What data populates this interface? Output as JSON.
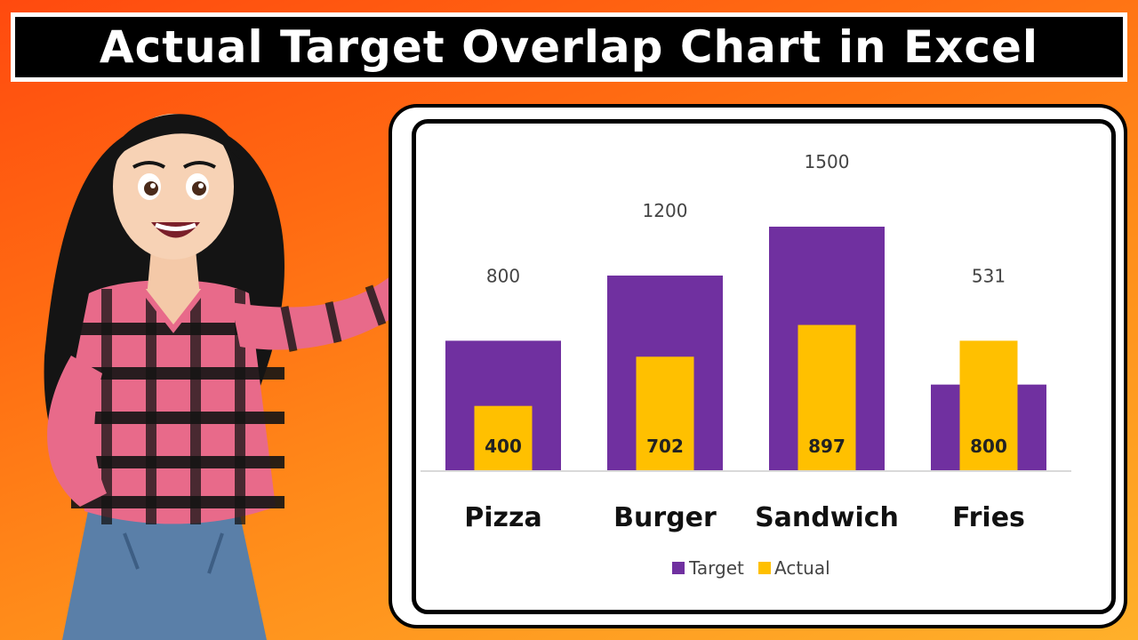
{
  "title": "Actual Target Overlap Chart in Excel",
  "colors": {
    "target": "#7030a0",
    "actual": "#ffc000",
    "title_bg": "#000000",
    "title_text": "#ffffff"
  },
  "chart_data": {
    "type": "bar",
    "categories": [
      "Pizza",
      "Burger",
      "Sandwich",
      "Fries"
    ],
    "series": [
      {
        "name": "Target",
        "values": [
          800,
          1200,
          1500,
          531
        ]
      },
      {
        "name": "Actual",
        "values": [
          400,
          702,
          897,
          800
        ]
      }
    ],
    "labels": {
      "target": [
        "800",
        "1200",
        "1500",
        "531"
      ],
      "actual": [
        "400",
        "702",
        "897",
        "800"
      ]
    },
    "legend": [
      "Target",
      "Actual"
    ],
    "legend_position": "bottom",
    "ylim": [
      0,
      1500
    ],
    "grid": false,
    "overlap": true
  }
}
